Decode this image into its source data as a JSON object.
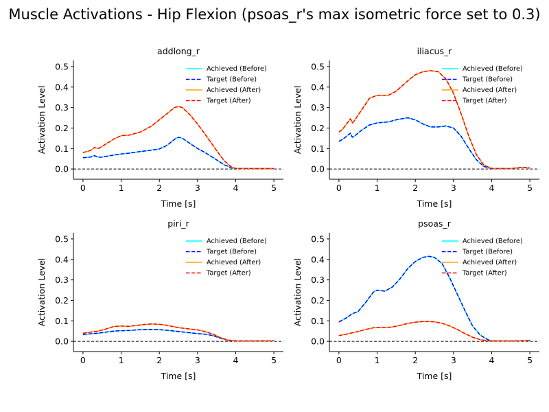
{
  "figure": {
    "title": "Muscle Activations - Hip Flexion (psoas_r's max isometric force set to 0.3)"
  },
  "colors": {
    "achieved_before": "#00ffff",
    "target_before": "#0000ff",
    "achieved_after": "#ffa500",
    "target_after": "#ff0000",
    "zero_line": "#000000"
  },
  "chart_data": [
    {
      "type": "line",
      "title": "addlong_r",
      "xlabel": "Time [s]",
      "ylabel": "Activation Level",
      "xlim": [
        -0.25,
        5.25
      ],
      "ylim": [
        -0.05,
        0.53
      ],
      "xticks": [
        0,
        1,
        2,
        3,
        4,
        5
      ],
      "yticks": [
        0.0,
        0.1,
        0.2,
        0.3,
        0.4,
        0.5
      ],
      "legend": "top-right",
      "grid": false,
      "reference_line_y": 0.0,
      "x": [
        0,
        0.2,
        0.3,
        0.4,
        0.5,
        0.8,
        1,
        1.2,
        1.5,
        1.8,
        2,
        2.2,
        2.4,
        2.5,
        2.6,
        2.8,
        3,
        3.2,
        3.5,
        3.7,
        3.9,
        4,
        4.5,
        5
      ],
      "series": [
        {
          "name": "Achieved (Before)",
          "style": "solid",
          "values": [
            0.055,
            0.058,
            0.065,
            0.057,
            0.058,
            0.068,
            0.073,
            0.077,
            0.085,
            0.092,
            0.098,
            0.115,
            0.145,
            0.155,
            0.15,
            0.125,
            0.1,
            0.08,
            0.045,
            0.02,
            0.005,
            0.003,
            0.002,
            0.002
          ]
        },
        {
          "name": "Target (Before)",
          "style": "dashed",
          "values": [
            0.055,
            0.058,
            0.065,
            0.057,
            0.058,
            0.068,
            0.073,
            0.077,
            0.085,
            0.092,
            0.098,
            0.115,
            0.145,
            0.155,
            0.15,
            0.125,
            0.1,
            0.08,
            0.045,
            0.02,
            0.005,
            0.003,
            0.002,
            0.002
          ]
        },
        {
          "name": "Achieved (After)",
          "style": "solid",
          "values": [
            0.08,
            0.09,
            0.105,
            0.1,
            0.11,
            0.145,
            0.163,
            0.165,
            0.18,
            0.21,
            0.24,
            0.27,
            0.3,
            0.305,
            0.3,
            0.265,
            0.22,
            0.17,
            0.09,
            0.04,
            0.008,
            0.003,
            0.002,
            0.002
          ]
        },
        {
          "name": "Target (After)",
          "style": "dashed",
          "values": [
            0.08,
            0.09,
            0.105,
            0.1,
            0.11,
            0.145,
            0.163,
            0.165,
            0.18,
            0.21,
            0.24,
            0.27,
            0.3,
            0.305,
            0.3,
            0.265,
            0.22,
            0.17,
            0.09,
            0.04,
            0.008,
            0.003,
            0.002,
            0.002
          ]
        }
      ]
    },
    {
      "type": "line",
      "title": "iliacus_r",
      "xlabel": "Time [s]",
      "ylabel": "Activation Level",
      "xlim": [
        -0.25,
        5.25
      ],
      "ylim": [
        -0.05,
        0.53
      ],
      "xticks": [
        0,
        1,
        2,
        3,
        4,
        5
      ],
      "yticks": [
        0.0,
        0.1,
        0.2,
        0.3,
        0.4,
        0.5
      ],
      "legend": "top-right",
      "grid": false,
      "reference_line_y": 0.0,
      "x": [
        0,
        0.1,
        0.2,
        0.3,
        0.35,
        0.4,
        0.6,
        0.8,
        1,
        1.3,
        1.5,
        1.8,
        2,
        2.2,
        2.4,
        2.6,
        2.8,
        3,
        3.2,
        3.4,
        3.6,
        3.8,
        4,
        4.5,
        4.8,
        5
      ],
      "series": [
        {
          "name": "Achieved (Before)",
          "style": "solid",
          "values": [
            0.135,
            0.145,
            0.16,
            0.175,
            0.155,
            0.16,
            0.19,
            0.215,
            0.225,
            0.23,
            0.24,
            0.25,
            0.24,
            0.22,
            0.205,
            0.205,
            0.21,
            0.2,
            0.16,
            0.1,
            0.045,
            0.012,
            0.002,
            0.002,
            0.008,
            0.005
          ]
        },
        {
          "name": "Target (Before)",
          "style": "dashed",
          "values": [
            0.135,
            0.145,
            0.16,
            0.175,
            0.155,
            0.16,
            0.19,
            0.215,
            0.225,
            0.23,
            0.24,
            0.25,
            0.24,
            0.22,
            0.205,
            0.205,
            0.21,
            0.2,
            0.16,
            0.1,
            0.045,
            0.012,
            0.002,
            0.002,
            0.008,
            0.005
          ]
        },
        {
          "name": "Achieved (After)",
          "style": "solid",
          "values": [
            0.18,
            0.195,
            0.22,
            0.245,
            0.225,
            0.235,
            0.29,
            0.345,
            0.36,
            0.36,
            0.38,
            0.43,
            0.46,
            0.475,
            0.48,
            0.475,
            0.44,
            0.37,
            0.27,
            0.16,
            0.07,
            0.018,
            0.003,
            0.002,
            0.008,
            0.005
          ]
        },
        {
          "name": "Target (After)",
          "style": "dashed",
          "values": [
            0.18,
            0.195,
            0.22,
            0.245,
            0.225,
            0.235,
            0.29,
            0.345,
            0.36,
            0.36,
            0.38,
            0.43,
            0.46,
            0.475,
            0.48,
            0.475,
            0.44,
            0.37,
            0.27,
            0.16,
            0.07,
            0.018,
            0.003,
            0.002,
            0.008,
            0.005
          ]
        }
      ]
    },
    {
      "type": "line",
      "title": "piri_r",
      "xlabel": "Time [s]",
      "ylabel": "Activation Level",
      "xlim": [
        -0.25,
        5.25
      ],
      "ylim": [
        -0.05,
        0.53
      ],
      "xticks": [
        0,
        1,
        2,
        3,
        4,
        5
      ],
      "yticks": [
        0.0,
        0.1,
        0.2,
        0.3,
        0.4,
        0.5
      ],
      "legend": "top-right",
      "grid": false,
      "reference_line_y": 0.0,
      "x": [
        0,
        0.2,
        0.4,
        0.6,
        0.8,
        1,
        1.2,
        1.5,
        1.8,
        2,
        2.2,
        2.5,
        2.8,
        3,
        3.2,
        3.4,
        3.6,
        3.8,
        4,
        4.5,
        5
      ],
      "series": [
        {
          "name": "Achieved (Before)",
          "style": "solid",
          "values": [
            0.033,
            0.037,
            0.04,
            0.045,
            0.05,
            0.052,
            0.053,
            0.057,
            0.058,
            0.057,
            0.054,
            0.048,
            0.042,
            0.038,
            0.035,
            0.028,
            0.015,
            0.005,
            0.002,
            0.002,
            0.003
          ]
        },
        {
          "name": "Target (Before)",
          "style": "dashed",
          "values": [
            0.033,
            0.037,
            0.04,
            0.045,
            0.05,
            0.052,
            0.053,
            0.057,
            0.058,
            0.057,
            0.054,
            0.048,
            0.042,
            0.038,
            0.035,
            0.028,
            0.015,
            0.005,
            0.002,
            0.002,
            0.003
          ]
        },
        {
          "name": "Achieved (After)",
          "style": "solid",
          "values": [
            0.04,
            0.045,
            0.05,
            0.06,
            0.072,
            0.075,
            0.073,
            0.08,
            0.085,
            0.083,
            0.078,
            0.067,
            0.06,
            0.056,
            0.048,
            0.035,
            0.018,
            0.006,
            0.002,
            0.002,
            0.003
          ]
        },
        {
          "name": "Target (After)",
          "style": "dashed",
          "values": [
            0.04,
            0.045,
            0.05,
            0.06,
            0.072,
            0.075,
            0.073,
            0.08,
            0.085,
            0.083,
            0.078,
            0.067,
            0.06,
            0.056,
            0.048,
            0.035,
            0.018,
            0.006,
            0.002,
            0.002,
            0.003
          ]
        }
      ]
    },
    {
      "type": "line",
      "title": "psoas_r",
      "xlabel": "Time [s]",
      "ylabel": "Activation Level",
      "xlim": [
        -0.25,
        5.25
      ],
      "ylim": [
        -0.05,
        0.53
      ],
      "xticks": [
        0,
        1,
        2,
        3,
        4,
        5
      ],
      "yticks": [
        0.0,
        0.1,
        0.2,
        0.3,
        0.4,
        0.5
      ],
      "legend": "top-right",
      "grid": false,
      "reference_line_y": 0.0,
      "x": [
        0,
        0.2,
        0.35,
        0.5,
        0.7,
        0.9,
        1,
        1.2,
        1.4,
        1.6,
        1.8,
        2,
        2.2,
        2.35,
        2.5,
        2.7,
        2.9,
        3.1,
        3.3,
        3.5,
        3.7,
        3.9,
        4,
        4.5,
        5
      ],
      "series": [
        {
          "name": "Achieved (Before)",
          "style": "solid",
          "values": [
            0.095,
            0.115,
            0.135,
            0.145,
            0.19,
            0.24,
            0.25,
            0.245,
            0.265,
            0.305,
            0.355,
            0.39,
            0.41,
            0.415,
            0.41,
            0.38,
            0.31,
            0.23,
            0.15,
            0.075,
            0.03,
            0.008,
            0.003,
            0.002,
            0.004
          ]
        },
        {
          "name": "Target (Before)",
          "style": "dashed",
          "values": [
            0.095,
            0.115,
            0.135,
            0.145,
            0.19,
            0.24,
            0.25,
            0.245,
            0.265,
            0.305,
            0.355,
            0.39,
            0.41,
            0.415,
            0.41,
            0.38,
            0.31,
            0.23,
            0.15,
            0.075,
            0.03,
            0.008,
            0.003,
            0.002,
            0.004
          ]
        },
        {
          "name": "Achieved (After)",
          "style": "solid",
          "values": [
            0.028,
            0.035,
            0.042,
            0.048,
            0.058,
            0.066,
            0.068,
            0.067,
            0.07,
            0.078,
            0.087,
            0.093,
            0.097,
            0.097,
            0.095,
            0.088,
            0.075,
            0.058,
            0.038,
            0.02,
            0.008,
            0.003,
            0.002,
            0.002,
            0.003
          ]
        },
        {
          "name": "Target (After)",
          "style": "dashed",
          "values": [
            0.028,
            0.035,
            0.042,
            0.048,
            0.058,
            0.066,
            0.068,
            0.067,
            0.07,
            0.078,
            0.087,
            0.093,
            0.097,
            0.097,
            0.095,
            0.088,
            0.075,
            0.058,
            0.038,
            0.02,
            0.008,
            0.003,
            0.002,
            0.002,
            0.003
          ]
        }
      ]
    }
  ]
}
